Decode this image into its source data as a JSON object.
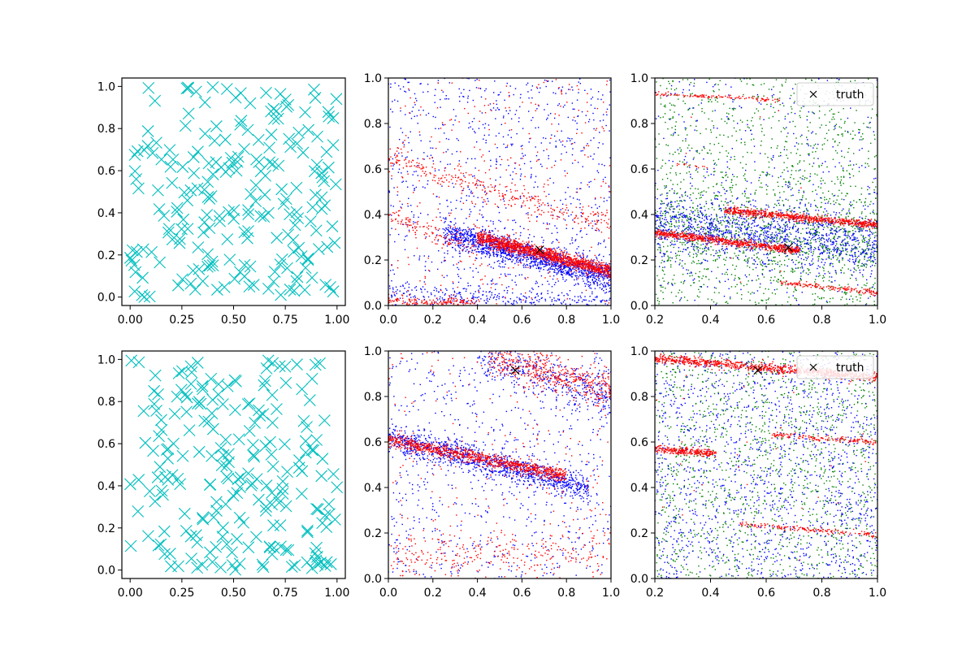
{
  "figure": {
    "background": "#ffffff"
  },
  "colors": {
    "cyan": "#00bfbf",
    "blue": "#0000ff",
    "red": "#ff0000",
    "green": "#008000",
    "black": "#000000"
  },
  "chart_data": [
    {
      "id": "uniform-top",
      "type": "scatter",
      "marker": "x-large",
      "xlim": [
        -0.04,
        1.04
      ],
      "ylim": [
        -0.04,
        1.04
      ],
      "xticks": [
        0.0,
        0.25,
        0.5,
        0.75,
        1.0
      ],
      "xtick_labels": [
        "0.00",
        "0.25",
        "0.50",
        "0.75",
        "1.00"
      ],
      "yticks": [
        0.0,
        0.2,
        0.4,
        0.6,
        0.8,
        1.0
      ],
      "ytick_labels": [
        "0.0",
        "0.2",
        "0.4",
        "0.6",
        "0.8",
        "1.0"
      ],
      "series": [
        {
          "color": "#00bfbf",
          "distribution": "uniform",
          "count": 220,
          "seed": 11
        }
      ]
    },
    {
      "id": "samples-top-mid",
      "type": "scatter",
      "marker": "dot",
      "xlim": [
        0,
        1
      ],
      "ylim": [
        0,
        1
      ],
      "xticks": [
        0.0,
        0.2,
        0.4,
        0.6,
        0.8,
        1.0
      ],
      "xtick_labels": [
        "0.0",
        "0.2",
        "0.4",
        "0.6",
        "0.8",
        "1.0"
      ],
      "yticks": [
        0.0,
        0.2,
        0.4,
        0.6,
        0.8,
        1.0
      ],
      "ytick_labels": [
        "0.0",
        "0.2",
        "0.4",
        "0.6",
        "0.8",
        "1.0"
      ],
      "truth_point": {
        "x": 0.68,
        "y": 0.245
      },
      "series": [
        {
          "color": "#0000ff",
          "bands": [
            {
              "x0": 0.25,
              "x1": 1.0,
              "y_start": 0.32,
              "slope": -0.26,
              "spread": 0.03,
              "count": 1400
            },
            {
              "x0": 0.0,
              "x1": 1.0,
              "y_start": 0.06,
              "slope": -0.05,
              "spread": 0.02,
              "count": 250
            }
          ],
          "background": {
            "count": 900,
            "y_min": 0.0,
            "y_max": 1.0
          }
        },
        {
          "color": "#ff0000",
          "bands": [
            {
              "x0": 0.4,
              "x1": 1.0,
              "y_start": 0.3,
              "slope": -0.25,
              "spread": 0.015,
              "count": 1300
            },
            {
              "x0": 0.0,
              "x1": 0.4,
              "y_start": 0.02,
              "slope": -0.02,
              "spread": 0.01,
              "count": 150
            },
            {
              "x0": 0.0,
              "x1": 1.0,
              "y_start": 0.65,
              "slope": -0.3,
              "spread": 0.025,
              "count": 300
            },
            {
              "x0": 0.0,
              "x1": 0.4,
              "y_start": 0.4,
              "slope": -0.4,
              "spread": 0.02,
              "count": 120
            }
          ],
          "background": {
            "count": 350,
            "y_min": 0.0,
            "y_max": 1.0
          }
        }
      ]
    },
    {
      "id": "samples-top-right",
      "type": "scatter",
      "marker": "dot",
      "xlim": [
        0.2,
        1.0
      ],
      "ylim": [
        0,
        1
      ],
      "xticks": [
        0.2,
        0.4,
        0.6,
        0.8,
        1.0
      ],
      "xtick_labels": [
        "0.2",
        "0.4",
        "0.6",
        "0.8",
        "1.0"
      ],
      "yticks": [
        0.0,
        0.2,
        0.4,
        0.6,
        0.8,
        1.0
      ],
      "ytick_labels": [
        "0.0",
        "0.2",
        "0.4",
        "0.6",
        "0.8",
        "1.0"
      ],
      "truth_point": {
        "x": 0.68,
        "y": 0.255
      },
      "legend": {
        "label": "truth",
        "position": "upper right"
      },
      "series": [
        {
          "color": "#008000",
          "bands": [
            {
              "x0": 0.2,
              "x1": 1.0,
              "y_start": 0.34,
              "slope": -0.1,
              "spread": 0.09,
              "count": 700
            }
          ],
          "background": {
            "count": 1300,
            "y_min": 0.0,
            "y_max": 1.0
          }
        },
        {
          "color": "#0000ff",
          "bands": [
            {
              "x0": 0.2,
              "x1": 1.0,
              "y_start": 0.36,
              "slope": -0.12,
              "spread": 0.07,
              "count": 1200
            }
          ],
          "background": {
            "count": 400,
            "y_min": 0.0,
            "y_max": 1.0
          }
        },
        {
          "color": "#ff0000",
          "bands": [
            {
              "x0": 0.2,
              "x1": 0.72,
              "y_start": 0.32,
              "slope": -0.15,
              "spread": 0.008,
              "count": 700
            },
            {
              "x0": 0.45,
              "x1": 1.0,
              "y_start": 0.42,
              "slope": -0.12,
              "spread": 0.008,
              "count": 700
            },
            {
              "x0": 0.2,
              "x1": 0.65,
              "y_start": 0.93,
              "slope": -0.06,
              "spread": 0.004,
              "count": 120
            },
            {
              "x0": 0.65,
              "x1": 1.0,
              "y_start": 0.1,
              "slope": -0.12,
              "spread": 0.006,
              "count": 150
            },
            {
              "x0": 0.28,
              "x1": 0.4,
              "y_start": 0.62,
              "slope": -0.1,
              "spread": 0.003,
              "count": 15
            }
          ],
          "background": {
            "count": 10,
            "y_min": 0.0,
            "y_max": 1.0
          }
        }
      ]
    },
    {
      "id": "uniform-bottom",
      "type": "scatter",
      "marker": "x-large",
      "xlim": [
        -0.04,
        1.04
      ],
      "ylim": [
        -0.04,
        1.04
      ],
      "xticks": [
        0.0,
        0.25,
        0.5,
        0.75,
        1.0
      ],
      "xtick_labels": [
        "0.00",
        "0.25",
        "0.50",
        "0.75",
        "1.00"
      ],
      "yticks": [
        0.0,
        0.2,
        0.4,
        0.6,
        0.8,
        1.0
      ],
      "ytick_labels": [
        "0.0",
        "0.2",
        "0.4",
        "0.6",
        "0.8",
        "1.0"
      ],
      "series": [
        {
          "color": "#00bfbf",
          "distribution": "uniform",
          "count": 220,
          "seed": 47
        }
      ]
    },
    {
      "id": "samples-bottom-mid",
      "type": "scatter",
      "marker": "dot",
      "xlim": [
        0,
        1
      ],
      "ylim": [
        0,
        1
      ],
      "xticks": [
        0.0,
        0.2,
        0.4,
        0.6,
        0.8,
        1.0
      ],
      "xtick_labels": [
        "0.0",
        "0.2",
        "0.4",
        "0.6",
        "0.8",
        "1.0"
      ],
      "yticks": [
        0.0,
        0.2,
        0.4,
        0.6,
        0.8,
        1.0
      ],
      "ytick_labels": [
        "0.0",
        "0.2",
        "0.4",
        "0.6",
        "0.8",
        "1.0"
      ],
      "truth_point": {
        "x": 0.57,
        "y": 0.915
      },
      "series": [
        {
          "color": "#0000ff",
          "bands": [
            {
              "x0": 0.0,
              "x1": 0.9,
              "y_start": 0.62,
              "slope": -0.25,
              "spread": 0.03,
              "count": 1100
            },
            {
              "x0": 0.4,
              "x1": 1.0,
              "y_start": 0.98,
              "slope": -0.3,
              "spread": 0.05,
              "count": 400
            }
          ],
          "background": {
            "count": 700,
            "y_min": 0.0,
            "y_max": 1.0
          }
        },
        {
          "color": "#ff0000",
          "bands": [
            {
              "x0": 0.0,
              "x1": 0.8,
              "y_start": 0.61,
              "slope": -0.2,
              "spread": 0.015,
              "count": 900
            },
            {
              "x0": 0.45,
              "x1": 1.0,
              "y_start": 0.98,
              "slope": -0.28,
              "spread": 0.04,
              "count": 450
            },
            {
              "x0": 0.0,
              "x1": 1.0,
              "y_start": 0.08,
              "slope": 0.05,
              "spread": 0.05,
              "count": 250
            }
          ],
          "background": {
            "count": 250,
            "y_min": 0.0,
            "y_max": 1.0
          }
        }
      ]
    },
    {
      "id": "samples-bottom-right",
      "type": "scatter",
      "marker": "dot",
      "xlim": [
        0.2,
        1.0
      ],
      "ylim": [
        0,
        1
      ],
      "xticks": [
        0.2,
        0.4,
        0.6,
        0.8,
        1.0
      ],
      "xtick_labels": [
        "0.2",
        "0.4",
        "0.6",
        "0.8",
        "1.0"
      ],
      "yticks": [
        0.0,
        0.2,
        0.4,
        0.6,
        0.8,
        1.0
      ],
      "ytick_labels": [
        "0.0",
        "0.2",
        "0.4",
        "0.6",
        "0.8",
        "1.0"
      ],
      "truth_point": {
        "x": 0.57,
        "y": 0.915
      },
      "legend": {
        "label": "truth",
        "position": "upper right"
      },
      "series": [
        {
          "color": "#008000",
          "bands": [],
          "background": {
            "count": 1400,
            "y_min": 0.0,
            "y_max": 1.0
          }
        },
        {
          "color": "#0000ff",
          "bands": [],
          "background": {
            "count": 1500,
            "y_min": 0.0,
            "y_max": 1.0
          }
        },
        {
          "color": "#ff0000",
          "bands": [
            {
              "x0": 0.2,
              "x1": 1.0,
              "y_start": 0.97,
              "slope": -0.11,
              "spread": 0.01,
              "count": 900
            },
            {
              "x0": 0.2,
              "x1": 0.42,
              "y_start": 0.57,
              "slope": -0.1,
              "spread": 0.008,
              "count": 250
            },
            {
              "x0": 0.62,
              "x1": 1.0,
              "y_start": 0.63,
              "slope": -0.08,
              "spread": 0.006,
              "count": 150
            },
            {
              "x0": 0.5,
              "x1": 1.0,
              "y_start": 0.24,
              "slope": -0.1,
              "spread": 0.006,
              "count": 150
            }
          ],
          "background": {
            "count": 30,
            "y_min": 0.0,
            "y_max": 1.0
          }
        }
      ]
    }
  ]
}
